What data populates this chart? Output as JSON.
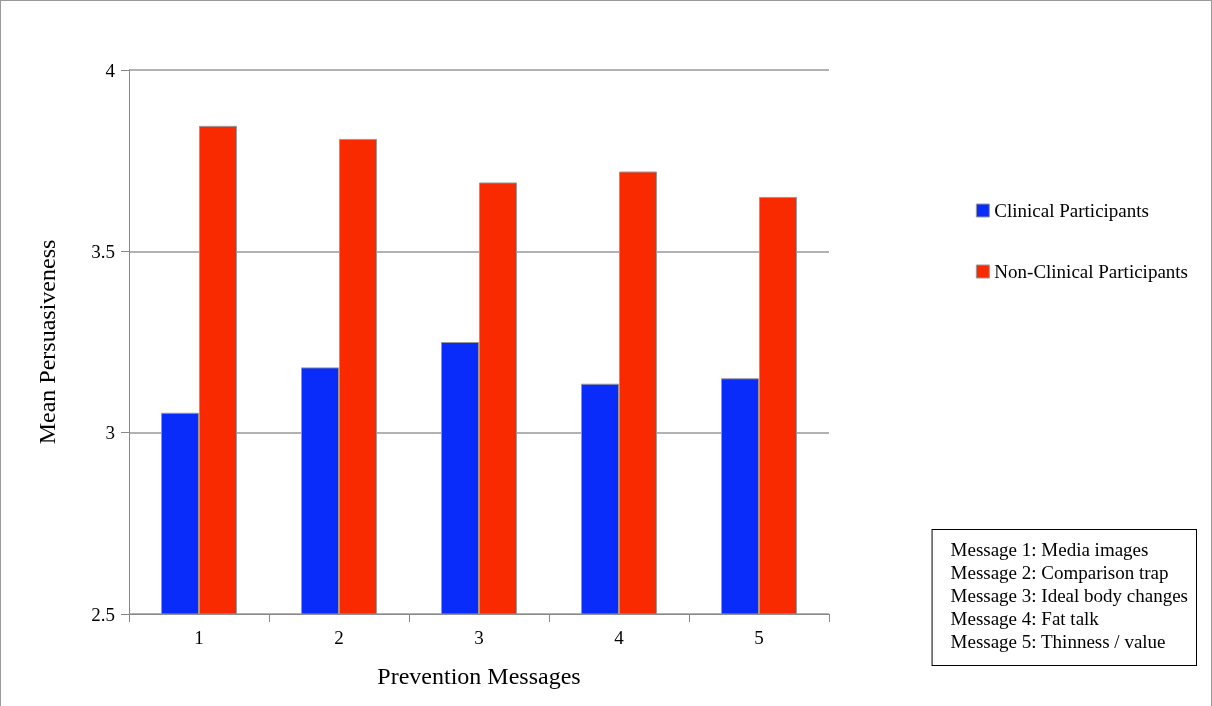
{
  "chart_data": {
    "type": "bar",
    "xlabel": "Prevention Messages",
    "ylabel": "Mean Persuasiveness",
    "categories": [
      "1",
      "2",
      "3",
      "4",
      "5"
    ],
    "series": [
      {
        "name": "Clinical Participants",
        "color": "#0a2cfa",
        "values": [
          3.055,
          3.18,
          3.25,
          3.135,
          3.15
        ]
      },
      {
        "name": "Non-Clinical Participants",
        "color": "#fa2a00",
        "values": [
          3.846,
          3.81,
          3.69,
          3.72,
          3.65
        ]
      }
    ],
    "ylim": [
      2.5,
      4
    ],
    "yticks": [
      2.5,
      3,
      3.5,
      4
    ],
    "grid": "y",
    "legend": "right",
    "annotations": [
      "Message 1: Media images",
      "Message 2: Comparison trap",
      "Message 3: Ideal body changes",
      "Message 4: Fat talk",
      "Message 5: Thinness / value"
    ]
  }
}
